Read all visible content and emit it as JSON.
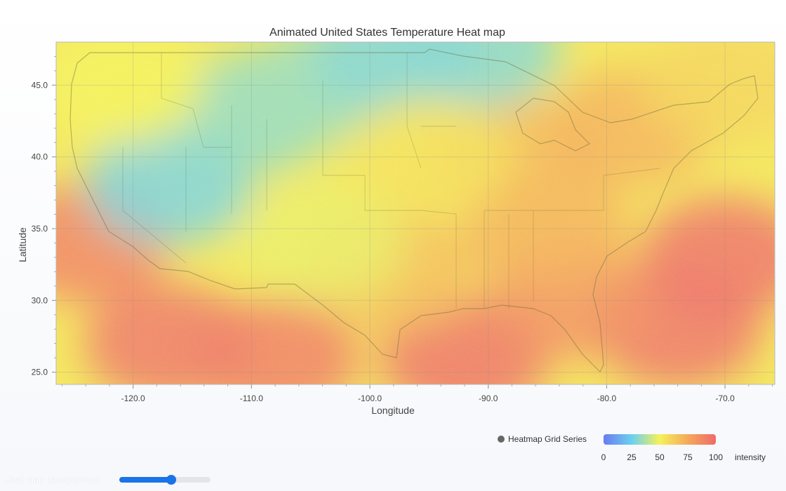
{
  "chart_data": {
    "type": "heatmap",
    "title": "Animated United States Temperature Heat map",
    "xlabel": "Longitude",
    "ylabel": "Latitude",
    "xlim": [
      -126.5,
      -65.8
    ],
    "ylim": [
      24.15,
      48.0
    ],
    "x_ticks": [
      {
        "value": -120,
        "label": "-120.0"
      },
      {
        "value": -110,
        "label": "-110.0"
      },
      {
        "value": -100,
        "label": "-100.0"
      },
      {
        "value": -90,
        "label": "-90.0"
      },
      {
        "value": -80,
        "label": "-80.0"
      },
      {
        "value": -70,
        "label": "-70.0"
      }
    ],
    "y_ticks": [
      {
        "value": 45,
        "label": "45.0"
      },
      {
        "value": 40,
        "label": "40.0"
      },
      {
        "value": 35,
        "label": "35.0"
      },
      {
        "value": 30,
        "label": "30.0"
      },
      {
        "value": 25,
        "label": "25.0"
      }
    ],
    "series": [
      {
        "name": "Heatmap Grid Series"
      }
    ],
    "colorscale": {
      "label": "intensity",
      "min": 0,
      "max": 100,
      "ticks": [
        "0",
        "25",
        "50",
        "75",
        "100"
      ],
      "stops": [
        {
          "value": 0,
          "color": "#6b7bf0"
        },
        {
          "value": 25,
          "color": "#6ad0f0"
        },
        {
          "value": 50,
          "color": "#f5f25a"
        },
        {
          "value": 75,
          "color": "#f5a95a"
        },
        {
          "value": 100,
          "color": "#ee6a6a"
        }
      ]
    },
    "intensity_regions": [
      {
        "lon": -124,
        "lat": 34,
        "intensity": 90
      },
      {
        "lon": -117,
        "lat": 27,
        "intensity": 95
      },
      {
        "lon": -108,
        "lat": 26,
        "intensity": 92
      },
      {
        "lon": -92,
        "lat": 26,
        "intensity": 97
      },
      {
        "lon": -70,
        "lat": 33,
        "intensity": 97
      },
      {
        "lon": -74,
        "lat": 28,
        "intensity": 96
      },
      {
        "lon": -83,
        "lat": 30,
        "intensity": 85
      },
      {
        "lon": -85,
        "lat": 35,
        "intensity": 72
      },
      {
        "lon": -88,
        "lat": 40,
        "intensity": 70
      },
      {
        "lon": -78,
        "lat": 42,
        "intensity": 72
      },
      {
        "lon": -98,
        "lat": 32,
        "intensity": 68
      },
      {
        "lon": -104,
        "lat": 34,
        "intensity": 48
      },
      {
        "lon": -117,
        "lat": 38,
        "intensity": 28
      },
      {
        "lon": -110,
        "lat": 43,
        "intensity": 32
      },
      {
        "lon": -104,
        "lat": 45,
        "intensity": 35
      },
      {
        "lon": -98,
        "lat": 47,
        "intensity": 30
      },
      {
        "lon": -91,
        "lat": 47.5,
        "intensity": 30
      },
      {
        "lon": -121,
        "lat": 45,
        "intensity": 50
      },
      {
        "lon": -95,
        "lat": 40,
        "intensity": 55
      },
      {
        "lon": -70,
        "lat": 45,
        "intensity": 60
      }
    ],
    "grid": true,
    "legend_position": "bottom-right"
  },
  "legend": {
    "series_name": "Heatmap Grid Series",
    "colorbar_label": "intensity"
  },
  "controls": {
    "transparency_label": "Heat map transparency",
    "transparency_value": 0.58
  },
  "colors": {
    "plot_border": "#b8b8b8",
    "slider_accent": "#1a73e8"
  }
}
